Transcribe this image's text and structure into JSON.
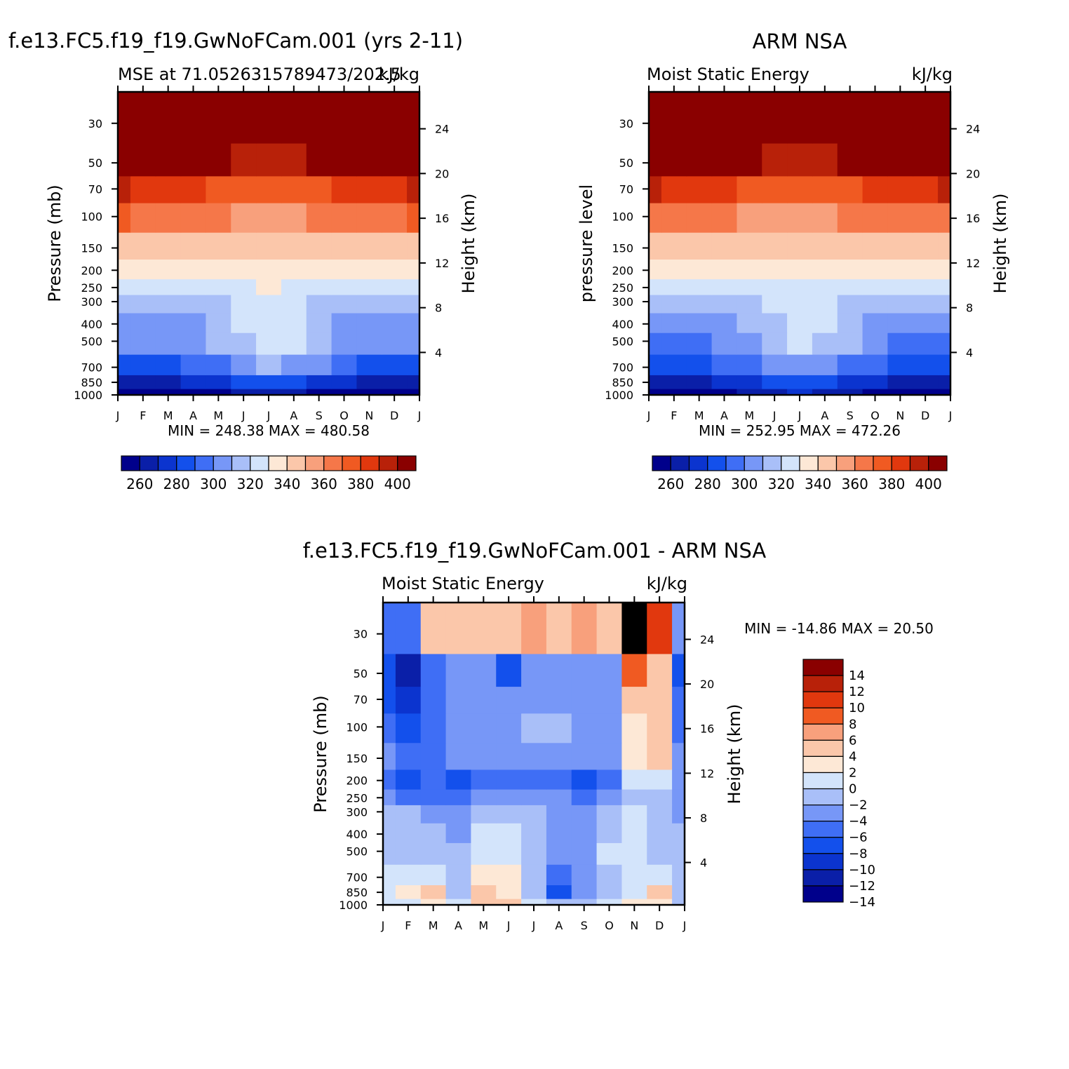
{
  "months": [
    "J",
    "F",
    "M",
    "A",
    "M",
    "J",
    "J",
    "A",
    "S",
    "O",
    "N",
    "D",
    "J"
  ],
  "pressure_ticks": [
    "30",
    "50",
    "70",
    "100",
    "150",
    "200",
    "250",
    "300",
    "400",
    "500",
    "700",
    "850",
    "1000"
  ],
  "pressure_values": [
    30,
    50,
    70,
    100,
    150,
    200,
    250,
    300,
    400,
    500,
    700,
    850,
    1000
  ],
  "height_ticks": [
    "24",
    "20",
    "16",
    "12",
    "8",
    "4"
  ],
  "panels": [
    {
      "id": "model",
      "main_title": "f.e13.FC5.f19_f19.GwNoFCam.001 (yrs 2-11)",
      "left_subtitle": "MSE at 71.0526315789473/202.5",
      "right_subtitle": "kJ/kg",
      "y_label": "Pressure (mb)",
      "y2_label": "Height (km)",
      "min_max": "MIN = 248.38 MAX = 480.58"
    },
    {
      "id": "obs",
      "main_title": "ARM NSA",
      "left_subtitle": "Moist Static Energy",
      "right_subtitle": "kJ/kg",
      "y_label": "pressure level",
      "y2_label": "Height (km)",
      "min_max": "MIN = 252.95 MAX = 472.26"
    },
    {
      "id": "diff",
      "main_title": "f.e13.FC5.f19_f19.GwNoFCam.001 - ARM NSA",
      "left_subtitle": "Moist Static Energy",
      "right_subtitle": "kJ/kg",
      "y_label": "Pressure (mb)",
      "y2_label": "Height (km)",
      "min_max": "MIN = -14.86 MAX =  20.50"
    }
  ],
  "colorbar_mse": {
    "labels": [
      "260",
      "280",
      "300",
      "320",
      "340",
      "360",
      "380",
      "400"
    ],
    "colors": [
      "#00008b",
      "#0a1fa8",
      "#0b34cf",
      "#1350ec",
      "#3f6ef5",
      "#7797f7",
      "#a9bff8",
      "#d3e4fb",
      "#fde8d6",
      "#fbc7aa",
      "#f8a07c",
      "#f57749",
      "#f05a22",
      "#e1380e",
      "#b82109",
      "#8a0000"
    ]
  },
  "colorbar_diff": {
    "labels": [
      "14",
      "12",
      "10",
      "8",
      "6",
      "4",
      "2",
      "0",
      "-2",
      "-4",
      "-6",
      "-8",
      "-10",
      "-12",
      "-14"
    ],
    "colors": [
      "#8a0000",
      "#b82109",
      "#e1380e",
      "#f05a22",
      "#f8a07c",
      "#fbc7aa",
      "#fde8d6",
      "#d3e4fb",
      "#a9bff8",
      "#7797f7",
      "#3f6ef5",
      "#1350ec",
      "#0b34cf",
      "#0a1fa8",
      "#00008b"
    ]
  },
  "chart_data": [
    {
      "type": "heatmap",
      "title": "f.e13.FC5.f19_f19.GwNoFCam.001 (yrs 2-11)",
      "subtitle": "MSE at 71.0526315789473/202.5",
      "units": "kJ/kg",
      "xlabel": "",
      "ylabel": "Pressure (mb)",
      "y2label": "Height (km)",
      "x": [
        "J",
        "F",
        "M",
        "A",
        "M",
        "J",
        "J",
        "A",
        "S",
        "O",
        "N",
        "D",
        "J"
      ],
      "y_pressure_mb": [
        1000,
        850,
        700,
        500,
        400,
        300,
        250,
        200,
        150,
        100,
        70,
        50,
        30
      ],
      "values": [
        [
          250,
          250,
          252,
          253,
          258,
          265,
          268,
          265,
          258,
          253,
          250,
          250,
          250
        ],
        [
          268,
          268,
          268,
          270,
          275,
          280,
          285,
          282,
          278,
          272,
          268,
          267,
          268
        ],
        [
          288,
          288,
          288,
          292,
          298,
          305,
          310,
          308,
          300,
          292,
          289,
          288,
          288
        ],
        [
          300,
          300,
          300,
          304,
          310,
          318,
          322,
          320,
          312,
          304,
          300,
          300,
          300
        ],
        [
          303,
          303,
          303,
          306,
          312,
          320,
          325,
          322,
          314,
          306,
          303,
          303,
          303
        ],
        [
          312,
          312,
          312,
          314,
          318,
          324,
          327,
          325,
          319,
          314,
          312,
          312,
          312
        ],
        [
          322,
          322,
          322,
          323,
          325,
          328,
          330,
          329,
          326,
          323,
          322,
          322,
          322
        ],
        [
          334,
          334,
          333,
          332,
          331,
          331,
          331,
          332,
          333,
          334,
          335,
          335,
          334
        ],
        [
          348,
          347,
          346,
          344,
          342,
          341,
          340,
          341,
          343,
          345,
          347,
          348,
          348
        ],
        [
          370,
          368,
          366,
          363,
          360,
          358,
          357,
          358,
          361,
          364,
          367,
          369,
          370
        ],
        [
          392,
          389,
          386,
          382,
          378,
          375,
          374,
          375,
          378,
          382,
          386,
          389,
          392
        ],
        [
          418,
          414,
          410,
          406,
          402,
          399,
          398,
          399,
          402,
          406,
          410,
          414,
          418
        ],
        [
          470,
          466,
          462,
          458,
          455,
          452,
          451,
          452,
          455,
          458,
          462,
          466,
          470
        ]
      ],
      "colorbar_levels": [
        260,
        270,
        280,
        290,
        300,
        310,
        320,
        330,
        340,
        350,
        360,
        370,
        380,
        390,
        400
      ],
      "min": 248.38,
      "max": 480.58
    },
    {
      "type": "heatmap",
      "title": "ARM NSA",
      "subtitle": "Moist Static Energy",
      "units": "kJ/kg",
      "xlabel": "",
      "ylabel": "pressure level",
      "y2label": "Height (km)",
      "x": [
        "J",
        "F",
        "M",
        "A",
        "M",
        "J",
        "J",
        "A",
        "S",
        "O",
        "N",
        "D",
        "J"
      ],
      "y_pressure_mb": [
        1000,
        850,
        700,
        500,
        400,
        300,
        250,
        200,
        150,
        100,
        70,
        50,
        30
      ],
      "values": [
        [
          255,
          256,
          257,
          259,
          262,
          268,
          270,
          268,
          262,
          258,
          256,
          255,
          255
        ],
        [
          268,
          268,
          268,
          271,
          276,
          282,
          286,
          284,
          278,
          272,
          268,
          268,
          268
        ],
        [
          286,
          286,
          286,
          290,
          296,
          304,
          308,
          306,
          299,
          292,
          288,
          286,
          286
        ],
        [
          299,
          299,
          299,
          302,
          308,
          316,
          320,
          318,
          310,
          302,
          299,
          299,
          299
        ],
        [
          302,
          302,
          302,
          305,
          311,
          318,
          322,
          320,
          313,
          305,
          302,
          302,
          302
        ],
        [
          312,
          312,
          312,
          313,
          317,
          322,
          325,
          323,
          318,
          314,
          312,
          312,
          312
        ],
        [
          321,
          321,
          321,
          322,
          324,
          327,
          329,
          328,
          325,
          322,
          321,
          321,
          321
        ],
        [
          333,
          333,
          332,
          331,
          330,
          330,
          331,
          331,
          332,
          333,
          334,
          334,
          333
        ],
        [
          348,
          347,
          346,
          344,
          342,
          341,
          340,
          341,
          343,
          345,
          347,
          348,
          348
        ],
        [
          369,
          367,
          365,
          362,
          359,
          357,
          356,
          357,
          360,
          363,
          366,
          368,
          369
        ],
        [
          390,
          388,
          385,
          381,
          377,
          374,
          373,
          374,
          377,
          381,
          385,
          388,
          390
        ],
        [
          416,
          413,
          409,
          405,
          401,
          398,
          397,
          398,
          401,
          405,
          409,
          413,
          416
        ],
        [
          465,
          462,
          458,
          454,
          451,
          448,
          447,
          448,
          451,
          454,
          458,
          462,
          465
        ]
      ],
      "colorbar_levels": [
        260,
        270,
        280,
        290,
        300,
        310,
        320,
        330,
        340,
        350,
        360,
        370,
        380,
        390,
        400
      ],
      "min": 252.95,
      "max": 472.26
    },
    {
      "type": "heatmap",
      "title": "f.e13.FC5.f19_f19.GwNoFCam.001 - ARM NSA",
      "subtitle": "Moist Static Energy",
      "units": "kJ/kg",
      "xlabel": "",
      "ylabel": "Pressure (mb)",
      "y2label": "Height (km)",
      "x": [
        "J",
        "F",
        "M",
        "A",
        "M",
        "J",
        "J",
        "A",
        "S",
        "O",
        "N",
        "D",
        "J"
      ],
      "y_pressure_mb": [
        1000,
        850,
        700,
        500,
        400,
        300,
        250,
        200,
        150,
        100,
        70,
        50,
        30
      ],
      "values": [
        [
          -2,
          -1,
          1,
          -2,
          3,
          2,
          -1,
          -3,
          -3,
          -2,
          0,
          1,
          -3
        ],
        [
          -1,
          0,
          2,
          -3,
          2,
          1,
          -3,
          -9,
          -6,
          -3,
          -1,
          2,
          -4
        ],
        [
          -2,
          -1,
          -1,
          -3,
          1,
          1,
          -4,
          -7,
          -6,
          -3,
          -2,
          -1,
          -4
        ],
        [
          -3,
          -4,
          -3,
          -4,
          -1,
          -1,
          -3,
          -6,
          -6,
          -2,
          -2,
          -3,
          -4
        ],
        [
          -3,
          -4,
          -4,
          -5,
          -1,
          -1,
          -3,
          -6,
          -6,
          -3,
          -1,
          -3,
          -4
        ],
        [
          -4,
          -4,
          -5,
          -5,
          -3,
          -3,
          -4,
          -6,
          -6,
          -4,
          -2,
          -4,
          -5
        ],
        [
          -6,
          -7,
          -7,
          -7,
          -6,
          -6,
          -5,
          -6,
          -7,
          -6,
          -3,
          -4,
          -6
        ],
        [
          -7,
          -9,
          -8,
          -9,
          -8,
          -8,
          -7,
          -8,
          -10,
          -7,
          -2,
          -1,
          -6
        ],
        [
          -6,
          -7,
          -7,
          -6,
          -6,
          -6,
          -5,
          -5,
          -6,
          -6,
          1,
          2,
          -6
        ],
        [
          -8,
          -9,
          -7,
          -6,
          -6,
          -5,
          -4,
          -4,
          -5,
          -6,
          1,
          2,
          -7
        ],
        [
          -9,
          -12,
          -8,
          -6,
          -6,
          -6,
          -6,
          -6,
          -6,
          -6,
          2,
          3,
          -8
        ],
        [
          -10,
          -14,
          -8,
          -6,
          -6,
          -9,
          -6,
          -6,
          -6,
          -5,
          6,
          2,
          -9
        ],
        [
          -8,
          -7,
          2,
          3,
          2,
          3,
          4,
          3,
          4,
          2,
          20,
          8,
          -6
        ]
      ],
      "colorbar_levels": [
        -14,
        -12,
        -10,
        -8,
        -6,
        -4,
        -2,
        0,
        2,
        4,
        6,
        8,
        10,
        12,
        14
      ],
      "min": -14.86,
      "max": 20.5
    }
  ]
}
